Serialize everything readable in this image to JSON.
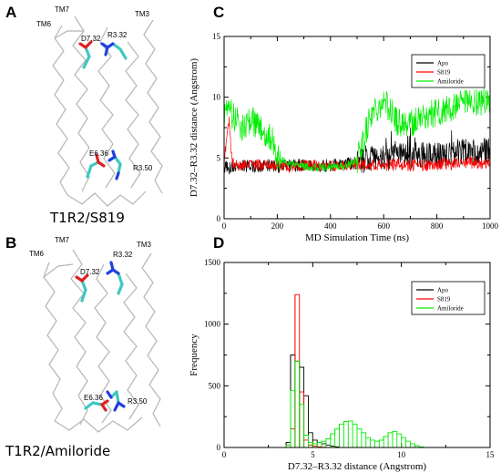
{
  "panels": {
    "A": {
      "letter": "A",
      "complex_label": "T1R2/S819",
      "helix_labels": [
        "TM6",
        "TM7",
        "TM3"
      ],
      "residue_labels": [
        "D7.32",
        "R3.32",
        "E6.36",
        "R3.50"
      ]
    },
    "B": {
      "letter": "B",
      "complex_label": "T1R2/Amiloride",
      "helix_labels": [
        "TM6",
        "TM7",
        "TM3"
      ],
      "residue_labels": [
        "D7.32",
        "R3.32",
        "E6.36",
        "R3.50"
      ]
    },
    "C": {
      "letter": "C"
    },
    "D": {
      "letter": "D"
    }
  },
  "colors": {
    "Apo": "#000000",
    "S819": "#ff0000",
    "Amiloride": "#00ee00",
    "carbon": "#3fc7c0",
    "oxygen": "#e02020",
    "nitrogen": "#2040e0",
    "backbone": "#b5b5b5"
  },
  "chart_data": [
    {
      "type": "line",
      "panel": "C",
      "xlabel": "MD Simulation Time (ns)",
      "ylabel": "D7.32–R3.32 distance (Angstrom)",
      "xlim": [
        0,
        1000
      ],
      "ylim": [
        0,
        15
      ],
      "xticks": [
        0,
        200,
        400,
        600,
        800,
        1000
      ],
      "yticks": [
        0,
        5,
        10,
        15
      ],
      "legend": "top-right",
      "series": [
        {
          "name": "Apo",
          "x": [
            0,
            50,
            100,
            150,
            200,
            250,
            300,
            350,
            400,
            450,
            500,
            550,
            600,
            650,
            700,
            750,
            800,
            850,
            900,
            950,
            1000
          ],
          "y": [
            4.2,
            4.3,
            4.3,
            4.4,
            4.3,
            4.4,
            4.4,
            4.3,
            4.4,
            4.5,
            4.6,
            4.9,
            5.0,
            5.1,
            5.2,
            5.2,
            5.3,
            5.4,
            5.6,
            5.5,
            5.6
          ]
        },
        {
          "name": "S819",
          "x": [
            0,
            10,
            20,
            30,
            50,
            100,
            150,
            200,
            250,
            300,
            350,
            400,
            450,
            500,
            550,
            600,
            650,
            700,
            750,
            800,
            850,
            900,
            950,
            1000
          ],
          "y": [
            4.5,
            7.0,
            8.0,
            4.5,
            4.3,
            4.4,
            4.5,
            4.4,
            4.3,
            4.4,
            4.4,
            4.3,
            4.4,
            4.5,
            4.4,
            4.4,
            4.5,
            4.4,
            4.4,
            4.5,
            4.5,
            4.6,
            4.6,
            4.5
          ]
        },
        {
          "name": "Amiloride",
          "x": [
            0,
            25,
            50,
            75,
            100,
            125,
            150,
            175,
            200,
            225,
            250,
            300,
            350,
            400,
            450,
            500,
            525,
            550,
            575,
            600,
            625,
            650,
            700,
            750,
            800,
            850,
            900,
            950,
            1000
          ],
          "y": [
            9.0,
            8.7,
            8.0,
            7.5,
            8.2,
            7.5,
            7.0,
            6.8,
            5.0,
            4.7,
            4.5,
            4.3,
            4.2,
            4.3,
            4.3,
            4.8,
            6.5,
            8.5,
            9.2,
            9.7,
            9.0,
            8.0,
            7.8,
            8.4,
            8.7,
            9.0,
            9.4,
            9.6,
            9.8
          ]
        }
      ]
    },
    {
      "type": "bar",
      "panel": "D",
      "xlabel": "D7.32–R3.32 distance (Angstrom)",
      "ylabel": "Frequency",
      "xlim": [
        0,
        15
      ],
      "ylim": [
        0,
        1500
      ],
      "xticks": [
        0,
        5,
        10,
        15
      ],
      "yticks": [
        0,
        500,
        1000,
        1500
      ],
      "bin_width": 0.25,
      "legend": "top-right",
      "series": [
        {
          "name": "Apo",
          "bins": [
            3.5,
            3.75,
            4.0,
            4.25,
            4.5,
            4.75,
            5.0,
            5.25,
            5.5,
            5.75,
            6.0,
            6.25
          ],
          "values": [
            40,
            750,
            700,
            650,
            420,
            120,
            60,
            40,
            30,
            20,
            10,
            5
          ]
        },
        {
          "name": "S819",
          "bins": [
            3.5,
            3.75,
            4.0,
            4.25,
            4.5,
            4.75,
            5.0,
            5.25,
            5.5
          ],
          "values": [
            20,
            150,
            1240,
            450,
            60,
            20,
            10,
            5,
            2
          ]
        },
        {
          "name": "Amiloride",
          "bins": [
            3.5,
            3.75,
            4.0,
            4.25,
            4.5,
            4.75,
            5.0,
            5.25,
            5.5,
            5.75,
            6.0,
            6.25,
            6.5,
            6.75,
            7.0,
            7.25,
            7.5,
            7.75,
            8.0,
            8.25,
            8.5,
            8.75,
            9.0,
            9.25,
            9.5,
            9.75,
            10.0,
            10.25,
            10.5,
            10.75,
            11.0
          ],
          "values": [
            20,
            460,
            700,
            350,
            100,
            40,
            30,
            40,
            50,
            70,
            110,
            150,
            190,
            210,
            215,
            190,
            150,
            120,
            80,
            60,
            50,
            60,
            90,
            120,
            130,
            110,
            80,
            50,
            30,
            15,
            5
          ]
        }
      ]
    }
  ]
}
